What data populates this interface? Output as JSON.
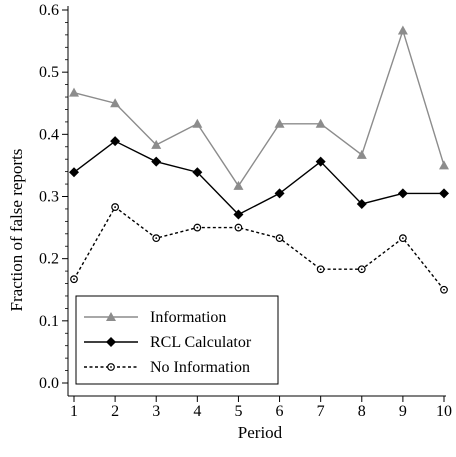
{
  "chart_data": {
    "type": "line",
    "x": [
      1,
      2,
      3,
      4,
      5,
      6,
      7,
      8,
      9,
      10
    ],
    "xlabel": "Period",
    "ylabel": "Fraction of false reports",
    "xlim": [
      1,
      10
    ],
    "ylim": [
      0,
      0.6
    ],
    "yticks": [
      "0.0",
      "0.1",
      "0.2",
      "0.3",
      "0.4",
      "0.5",
      "0.6"
    ],
    "xticks": [
      "1",
      "2",
      "3",
      "4",
      "5",
      "6",
      "7",
      "8",
      "9",
      "10"
    ],
    "grid": false,
    "legend_position": "bottom-left",
    "series": [
      {
        "name": "Information",
        "values": [
          0.467,
          0.45,
          0.383,
          0.417,
          0.317,
          0.417,
          0.417,
          0.367,
          0.567,
          0.35
        ],
        "color": "#8c8c8c",
        "marker": "triangle",
        "line": "solid"
      },
      {
        "name": "RCL Calculator",
        "values": [
          0.339,
          0.389,
          0.356,
          0.339,
          0.271,
          0.305,
          0.356,
          0.288,
          0.305,
          0.305
        ],
        "color": "#000000",
        "marker": "diamond",
        "line": "solid"
      },
      {
        "name": "No Information",
        "values": [
          0.167,
          0.283,
          0.233,
          0.25,
          0.25,
          0.233,
          0.183,
          0.183,
          0.233,
          0.15
        ],
        "color": "#000000",
        "marker": "circle-open",
        "line": "dashed"
      }
    ]
  }
}
